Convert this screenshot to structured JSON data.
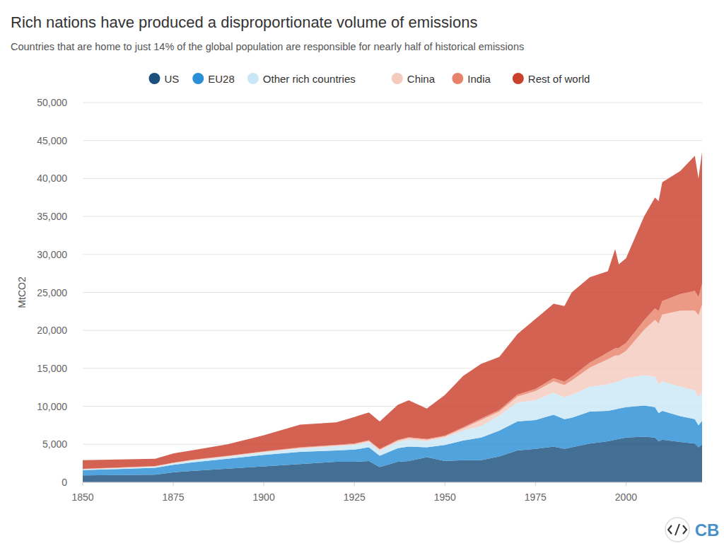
{
  "chart_data": {
    "type": "area",
    "title": "Rich nations have produced a disproportionate volume of emissions",
    "subtitle": "Countries that are home to just 14% of the global population are responsible for nearly half of historical emissions",
    "y_label": "MtCO2",
    "logo": "CB",
    "stacked": true,
    "grid": true,
    "legend": "top",
    "x": [
      1850,
      1860,
      1870,
      1875,
      1880,
      1890,
      1900,
      1910,
      1920,
      1925,
      1929,
      1932,
      1937,
      1940,
      1945,
      1950,
      1955,
      1960,
      1965,
      1970,
      1975,
      1980,
      1983,
      1985,
      1990,
      1995,
      1997,
      1998,
      2000,
      2005,
      2008,
      2009,
      2010,
      2015,
      2019,
      2020,
      2021
    ],
    "xlim": [
      1850,
      2021
    ],
    "xticks": [
      1850,
      1875,
      1900,
      1925,
      1950,
      1975,
      2000
    ],
    "ylim": [
      0,
      50000
    ],
    "yticks": [
      0,
      {
        "value": 5000,
        "label": "5,000"
      },
      {
        "value": 10000,
        "label": "10,000"
      },
      {
        "value": 15000,
        "label": "15,000"
      },
      {
        "value": 20000,
        "label": "20,000"
      },
      {
        "value": 25000,
        "label": "25,000"
      },
      {
        "value": 30000,
        "label": "30,000"
      },
      {
        "value": 35000,
        "label": "35,000"
      },
      {
        "value": 40000,
        "label": "40,000"
      },
      {
        "value": 45000,
        "label": "45,000"
      },
      {
        "value": 50000,
        "label": "50,000"
      }
    ],
    "series": [
      {
        "name": "US",
        "color": "#1b4f7e",
        "values": [
          900,
          950,
          1000,
          1300,
          1500,
          1800,
          2100,
          2400,
          2700,
          2700,
          2800,
          2000,
          2700,
          2800,
          3300,
          2800,
          2900,
          2900,
          3400,
          4200,
          4400,
          4700,
          4400,
          4600,
          5100,
          5400,
          5600,
          5700,
          5900,
          6000,
          5900,
          5400,
          5600,
          5300,
          5100,
          4600,
          5000
        ]
      },
      {
        "name": "EU28",
        "color": "#2b8fd6",
        "values": [
          700,
          800,
          900,
          1000,
          1100,
          1300,
          1500,
          1600,
          1500,
          1600,
          1800,
          1500,
          1800,
          1900,
          1300,
          2100,
          2600,
          3000,
          3400,
          3800,
          3800,
          4200,
          3900,
          3900,
          4200,
          4000,
          4000,
          4000,
          4000,
          4100,
          4000,
          3700,
          3800,
          3400,
          3200,
          2900,
          3100
        ]
      },
      {
        "name": "Other rich countries",
        "color": "#c9e8f7",
        "values": [
          100,
          120,
          150,
          200,
          250,
          280,
          350,
          450,
          550,
          600,
          700,
          650,
          800,
          900,
          800,
          1000,
          1300,
          1500,
          2000,
          2500,
          2600,
          2900,
          2900,
          3000,
          3300,
          3500,
          3600,
          3600,
          3800,
          4000,
          4000,
          3800,
          3900,
          3900,
          3800,
          3700,
          3800
        ]
      },
      {
        "name": "China",
        "color": "#f5cbbd",
        "values": [
          50,
          50,
          50,
          50,
          60,
          70,
          80,
          100,
          120,
          130,
          150,
          150,
          200,
          250,
          200,
          150,
          300,
          800,
          500,
          800,
          1200,
          1500,
          1600,
          1900,
          2500,
          3300,
          3500,
          3400,
          3600,
          6000,
          7500,
          8000,
          8800,
          10000,
          10500,
          10800,
          11500
        ]
      },
      {
        "name": "India",
        "color": "#e8836b",
        "values": [
          20,
          25,
          30,
          30,
          35,
          40,
          50,
          60,
          70,
          80,
          85,
          85,
          90,
          95,
          95,
          100,
          130,
          200,
          220,
          250,
          300,
          400,
          450,
          500,
          650,
          900,
          950,
          1000,
          1050,
          1250,
          1500,
          1650,
          1750,
          2200,
          2600,
          2400,
          2700
        ]
      },
      {
        "name": "Rest of world",
        "color": "#c9402c",
        "values": [
          1130,
          1055,
          970,
          1220,
          1255,
          1510,
          2120,
          2990,
          2960,
          3490,
          3665,
          3615,
          4610,
          4855,
          4005,
          5350,
          6770,
          7200,
          6980,
          7950,
          9200,
          9800,
          9950,
          11100,
          11250,
          10700,
          13050,
          11000,
          11150,
          13650,
          14600,
          14450,
          15650,
          16200,
          17800,
          15600,
          17400
        ]
      }
    ]
  }
}
